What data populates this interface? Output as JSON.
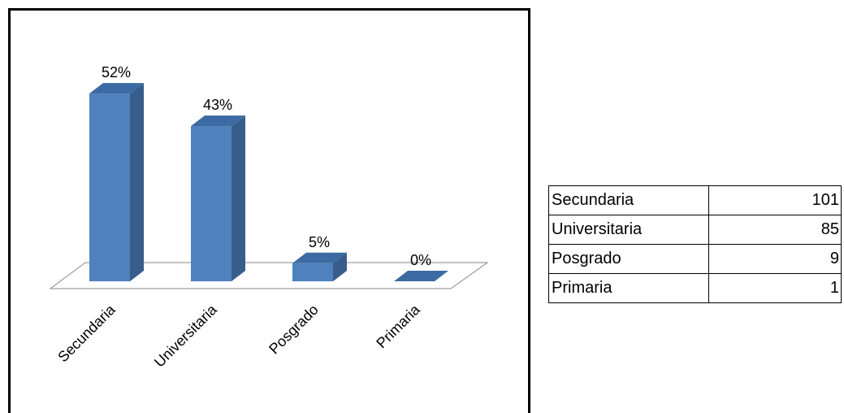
{
  "chart_data": {
    "type": "bar",
    "categories": [
      "Secundaria",
      "Universitaria",
      "Posgrado",
      "Primaria"
    ],
    "values": [
      52,
      43,
      5,
      0
    ],
    "value_labels": [
      "52%",
      "43%",
      "5%",
      "0%"
    ],
    "color": "#4f81bd"
  },
  "table": {
    "rows": [
      [
        "Secundaria",
        101
      ],
      [
        "Universitaria",
        85
      ],
      [
        "Posgrado",
        9
      ],
      [
        "Primaria",
        1
      ]
    ]
  }
}
